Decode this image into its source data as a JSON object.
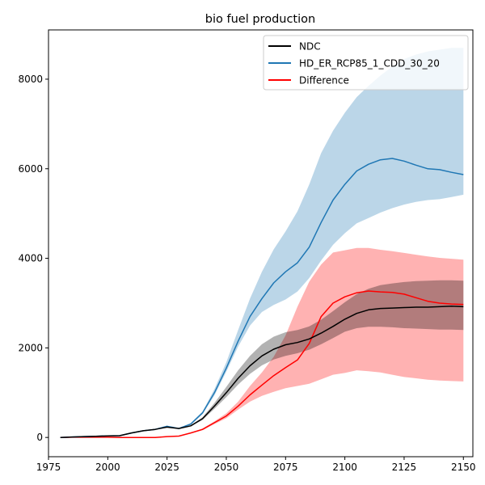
{
  "chart_data": {
    "type": "line",
    "title": "bio fuel production",
    "xlabel": "",
    "ylabel": "",
    "xlim": [
      1975,
      2154
    ],
    "ylim": [
      -430,
      9100
    ],
    "xticks": [
      1975,
      2000,
      2025,
      2050,
      2075,
      2100,
      2125,
      2150
    ],
    "yticks": [
      0,
      2000,
      4000,
      6000,
      8000
    ],
    "legend_position": "top-right",
    "series": [
      {
        "name": "NDC",
        "color": "#000000",
        "band_color": "#000000",
        "band_opacity": 0.3,
        "x": [
          1980,
          1985,
          1990,
          1995,
          2000,
          2005,
          2010,
          2015,
          2020,
          2025,
          2030,
          2035,
          2040,
          2045,
          2050,
          2055,
          2060,
          2065,
          2070,
          2075,
          2080,
          2085,
          2090,
          2095,
          2100,
          2105,
          2110,
          2115,
          2120,
          2125,
          2130,
          2135,
          2140,
          2145,
          2150
        ],
        "mean": [
          0,
          10,
          20,
          25,
          35,
          40,
          100,
          150,
          180,
          230,
          200,
          260,
          420,
          700,
          1000,
          1320,
          1600,
          1820,
          1970,
          2070,
          2120,
          2200,
          2330,
          2480,
          2640,
          2770,
          2850,
          2880,
          2890,
          2900,
          2910,
          2910,
          2920,
          2930,
          2920
        ],
        "lower": [
          0,
          10,
          20,
          25,
          35,
          40,
          100,
          150,
          180,
          230,
          200,
          250,
          390,
          640,
          900,
          1180,
          1420,
          1610,
          1740,
          1820,
          1880,
          1960,
          2080,
          2220,
          2360,
          2440,
          2470,
          2470,
          2460,
          2440,
          2430,
          2420,
          2410,
          2410,
          2400
        ],
        "upper": [
          0,
          10,
          20,
          25,
          35,
          40,
          100,
          150,
          180,
          230,
          200,
          270,
          450,
          770,
          1130,
          1500,
          1820,
          2080,
          2250,
          2350,
          2400,
          2480,
          2630,
          2820,
          3020,
          3200,
          3320,
          3400,
          3440,
          3470,
          3490,
          3500,
          3510,
          3510,
          3500
        ]
      },
      {
        "name": "HD_ER_RCP85_1_CDD_30_20",
        "color": "#1f77b4",
        "band_color": "#1f77b4",
        "band_opacity": 0.3,
        "x": [
          1980,
          1985,
          1990,
          1995,
          2000,
          2005,
          2010,
          2015,
          2020,
          2025,
          2030,
          2035,
          2040,
          2045,
          2050,
          2055,
          2060,
          2065,
          2070,
          2075,
          2080,
          2085,
          2090,
          2095,
          2100,
          2105,
          2110,
          2115,
          2120,
          2125,
          2130,
          2135,
          2140,
          2145,
          2150
        ],
        "mean": [
          0,
          10,
          20,
          25,
          35,
          40,
          100,
          150,
          180,
          250,
          200,
          300,
          550,
          1000,
          1550,
          2150,
          2700,
          3100,
          3450,
          3700,
          3900,
          4250,
          4800,
          5300,
          5650,
          5950,
          6100,
          6200,
          6230,
          6170,
          6080,
          6000,
          5980,
          5920,
          5870
        ],
        "lower": [
          0,
          10,
          20,
          25,
          35,
          40,
          100,
          150,
          180,
          250,
          200,
          280,
          520,
          940,
          1470,
          2030,
          2500,
          2800,
          2960,
          3080,
          3260,
          3560,
          3950,
          4300,
          4560,
          4780,
          4900,
          5020,
          5120,
          5200,
          5260,
          5300,
          5320,
          5370,
          5420
        ],
        "upper": [
          0,
          10,
          20,
          25,
          35,
          40,
          100,
          150,
          180,
          250,
          200,
          320,
          580,
          1080,
          1680,
          2400,
          3100,
          3700,
          4200,
          4600,
          5050,
          5650,
          6350,
          6850,
          7250,
          7600,
          7850,
          8080,
          8280,
          8450,
          8550,
          8620,
          8660,
          8700,
          8700
        ]
      },
      {
        "name": "Difference",
        "color": "#ff0000",
        "band_color": "#ff0000",
        "band_opacity": 0.3,
        "x": [
          1980,
          1985,
          1990,
          1995,
          2000,
          2005,
          2010,
          2015,
          2020,
          2025,
          2030,
          2035,
          2040,
          2045,
          2050,
          2055,
          2060,
          2065,
          2070,
          2075,
          2080,
          2085,
          2090,
          2095,
          2100,
          2105,
          2110,
          2115,
          2120,
          2125,
          2130,
          2135,
          2140,
          2145,
          2150
        ],
        "mean": [
          0,
          5,
          5,
          5,
          5,
          0,
          0,
          0,
          0,
          20,
          30,
          100,
          180,
          330,
          480,
          700,
          950,
          1170,
          1380,
          1560,
          1730,
          2100,
          2700,
          3000,
          3140,
          3230,
          3270,
          3250,
          3240,
          3200,
          3120,
          3040,
          3000,
          2980,
          2970
        ],
        "lower": [
          0,
          5,
          5,
          5,
          5,
          0,
          0,
          0,
          0,
          20,
          30,
          90,
          160,
          300,
          430,
          620,
          800,
          930,
          1020,
          1100,
          1150,
          1200,
          1300,
          1400,
          1440,
          1500,
          1480,
          1450,
          1400,
          1350,
          1320,
          1290,
          1270,
          1260,
          1250
        ],
        "upper": [
          0,
          5,
          5,
          5,
          5,
          0,
          0,
          0,
          0,
          20,
          30,
          110,
          200,
          360,
          540,
          800,
          1150,
          1450,
          1800,
          2280,
          2920,
          3480,
          3860,
          4130,
          4180,
          4230,
          4230,
          4190,
          4160,
          4120,
          4080,
          4040,
          4010,
          3990,
          3970
        ]
      }
    ]
  }
}
